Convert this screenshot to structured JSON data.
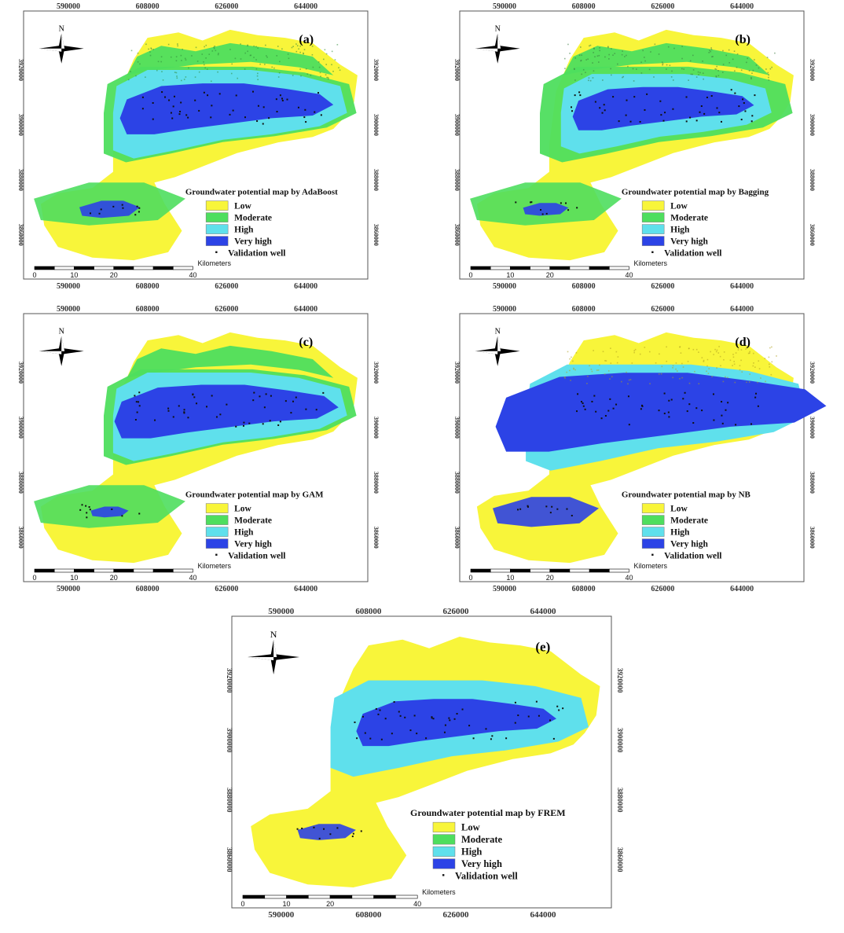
{
  "colors": {
    "low": "#f8f53a",
    "moderate": "#4ede5e",
    "high": "#5fe0ec",
    "very_high": "#2c43e6",
    "well": "#111111"
  },
  "north_label": "N",
  "scale": {
    "unit_label": "Kilometers",
    "ticks": [
      "0",
      "10",
      "20",
      "40"
    ]
  },
  "legend_classes": [
    "Low",
    "Moderate",
    "High",
    "Very high"
  ],
  "legend_well": "Validation well",
  "panels": [
    {
      "id": "a",
      "letter": "(a)",
      "title": "Groundwater potential map by AdaBoost",
      "x_ticks_top": [
        "590000",
        "608000",
        "626000",
        "644000"
      ],
      "x_ticks_bottom": [
        "590000",
        "608000",
        "626000",
        "644000"
      ],
      "y_ticks_right": [
        "3920000",
        "3900000",
        "3880000",
        "3860000"
      ],
      "y_ticks_left": [
        "3920000",
        "3900000",
        "3880000",
        "3860000"
      ]
    },
    {
      "id": "b",
      "letter": "(b)",
      "title": "Groundwater potential map by Bagging",
      "x_ticks_top": [
        "590000",
        "608000",
        "626000",
        "644000"
      ],
      "x_ticks_bottom": [
        "590000",
        "608000",
        "626000",
        "644000"
      ],
      "y_ticks_right": [
        "3920000",
        "3900000",
        "3880000",
        "3860000"
      ],
      "y_ticks_left": [
        "3920000",
        "3900000",
        "3880000",
        "3860000"
      ]
    },
    {
      "id": "c",
      "letter": "(c)",
      "title": "Groundwater potential map by GAM",
      "x_ticks_top": [
        "590000",
        "608000",
        "626000",
        "644000"
      ],
      "x_ticks_bottom": [
        "590000",
        "608000",
        "626000",
        "644000"
      ],
      "y_ticks_right": [
        "3920000",
        "3900000",
        "3880000",
        "3860000"
      ],
      "y_ticks_left": [
        "3920000",
        "3900000",
        "3880000",
        "3860000"
      ]
    },
    {
      "id": "d",
      "letter": "(d)",
      "title": "Groundwater potential map by NB",
      "x_ticks_top": [
        "590000",
        "608000",
        "626000",
        "644000"
      ],
      "x_ticks_bottom": [
        "590000",
        "608000",
        "626000",
        "644000"
      ],
      "y_ticks_right": [
        "3920000",
        "3900000",
        "3880000",
        "3860000"
      ],
      "y_ticks_left": [
        "3920000",
        "3900000",
        "3880000",
        "3860000"
      ]
    },
    {
      "id": "e",
      "letter": "(e)",
      "title": "Groundwater potential map by FREM",
      "x_ticks_top": [
        "590000",
        "608000",
        "626000",
        "644000"
      ],
      "x_ticks_bottom": [
        "590000",
        "608000",
        "626000",
        "644000"
      ],
      "y_ticks_right": [
        "3920000",
        "3900000",
        "3880000",
        "3860000"
      ],
      "y_ticks_left": [
        "3920000",
        "3900000",
        "3880000",
        "3860000"
      ]
    }
  ]
}
